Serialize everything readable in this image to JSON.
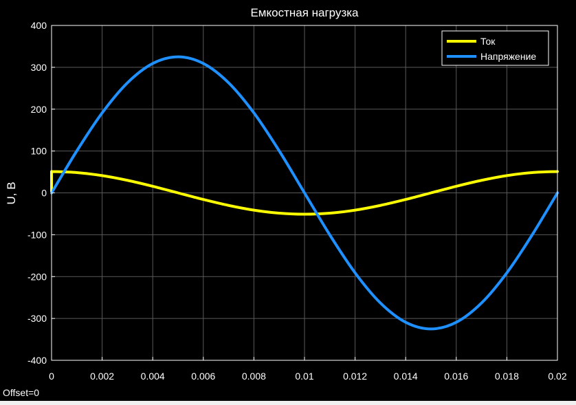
{
  "offset_label": "Offset=0",
  "chart_data": {
    "type": "line",
    "title": "Емкостная нагрузка",
    "xlabel": "",
    "ylabel": "U, В",
    "xlim": [
      0,
      0.02
    ],
    "ylim": [
      -400,
      400
    ],
    "xticks": [
      "0",
      "0.002",
      "0.004",
      "0.006",
      "0.008",
      "0.01",
      "0.012",
      "0.014",
      "0.016",
      "0.018",
      "0.02"
    ],
    "yticks": [
      "400",
      "300",
      "200",
      "100",
      "0",
      "-100",
      "-200",
      "-300",
      "-400"
    ],
    "grid": true,
    "legend_position": "top-right",
    "colors": {
      "background": "#000000",
      "axes": "#ffffff",
      "grid": "#5a5a5a"
    },
    "series": [
      {
        "name": "Ток",
        "color": "#ffff00",
        "x": [
          0,
          0,
          0.001,
          0.002,
          0.003,
          0.004,
          0.005,
          0.006,
          0.007,
          0.008,
          0.009,
          0.01,
          0.011,
          0.012,
          0.013,
          0.014,
          0.015,
          0.016,
          0.017,
          0.018,
          0.019,
          0.02
        ],
        "y": [
          0,
          51,
          48.5,
          41.3,
          30,
          15.8,
          0,
          -15.8,
          -30,
          -41.3,
          -48.5,
          -51,
          -48.5,
          -41.3,
          -30,
          -15.8,
          0,
          15.8,
          30,
          41.3,
          48.5,
          51
        ]
      },
      {
        "name": "Напряжение",
        "color": "#1e90ff",
        "x": [
          0,
          0.001,
          0.002,
          0.003,
          0.004,
          0.005,
          0.006,
          0.007,
          0.008,
          0.009,
          0.01,
          0.011,
          0.012,
          0.013,
          0.014,
          0.015,
          0.016,
          0.017,
          0.018,
          0.019,
          0.02
        ],
        "y": [
          0,
          100.4,
          191,
          262.9,
          309.1,
          325,
          309.1,
          262.9,
          191,
          100.4,
          0,
          -100.4,
          -191,
          -262.9,
          -309.1,
          -325,
          -309.1,
          -262.9,
          -191,
          -100.4,
          0
        ]
      }
    ]
  }
}
